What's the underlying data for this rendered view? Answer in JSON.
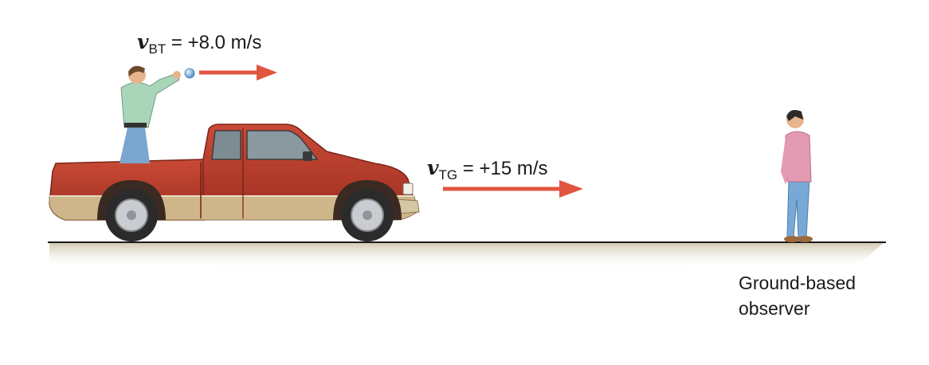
{
  "labels": {
    "ball_velocity": {
      "symbol": "v",
      "subscript": "BT",
      "value": " = +8.0 m/s"
    },
    "truck_velocity": {
      "symbol": "v",
      "subscript": "TG",
      "value": " = +15 m/s"
    },
    "observer": {
      "line1": "Ground-based",
      "line2": "observer"
    }
  },
  "colors": {
    "arrow": "#e0553f",
    "truck_body": "#b83c2c",
    "truck_lower": "#cfb68a",
    "ground": "#d8cfba"
  }
}
